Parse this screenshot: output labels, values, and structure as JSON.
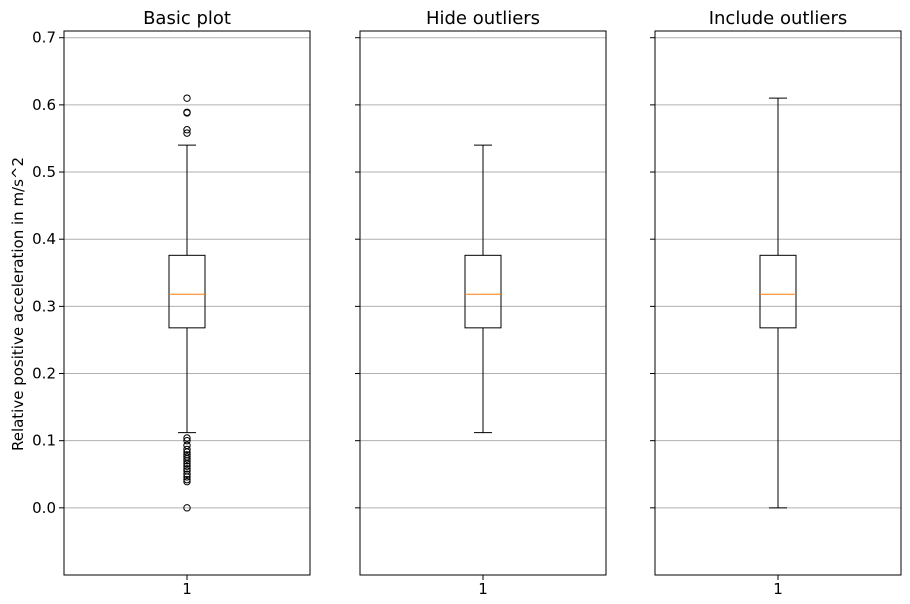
{
  "chart_data": {
    "type": "boxplot",
    "ylabel": "Relative positive acceleration in m/s^2",
    "ylim": [
      -0.1,
      0.71
    ],
    "yticks": [
      0.0,
      0.1,
      0.2,
      0.3,
      0.4,
      0.5,
      0.6,
      0.7
    ],
    "ytick_labels": [
      "0.0",
      "0.1",
      "0.2",
      "0.3",
      "0.4",
      "0.5",
      "0.6",
      "0.7"
    ],
    "grid": "horizontal",
    "colors": {
      "median": "#ff7f0e",
      "box": "#000000",
      "grid": "#b0b0b0"
    },
    "panels": [
      {
        "title": "Basic plot",
        "xtick_label": "1",
        "box": {
          "q1": 0.268,
          "median": 0.318,
          "q3": 0.376,
          "whisker_low": 0.112,
          "whisker_high": 0.54
        },
        "outliers": [
          0.61,
          0.589,
          0.588,
          0.563,
          0.558,
          0.104,
          0.1,
          0.093,
          0.087,
          0.083,
          0.079,
          0.076,
          0.073,
          0.07,
          0.066,
          0.062,
          0.058,
          0.055,
          0.05,
          0.046,
          0.042,
          0.039,
          0.0
        ]
      },
      {
        "title": "Hide outliers",
        "xtick_label": "1",
        "box": {
          "q1": 0.268,
          "median": 0.318,
          "q3": 0.376,
          "whisker_low": 0.112,
          "whisker_high": 0.54
        },
        "outliers": []
      },
      {
        "title": "Include outliers",
        "xtick_label": "1",
        "box": {
          "q1": 0.268,
          "median": 0.318,
          "q3": 0.376,
          "whisker_low": 0.0,
          "whisker_high": 0.61
        },
        "outliers": []
      }
    ]
  }
}
